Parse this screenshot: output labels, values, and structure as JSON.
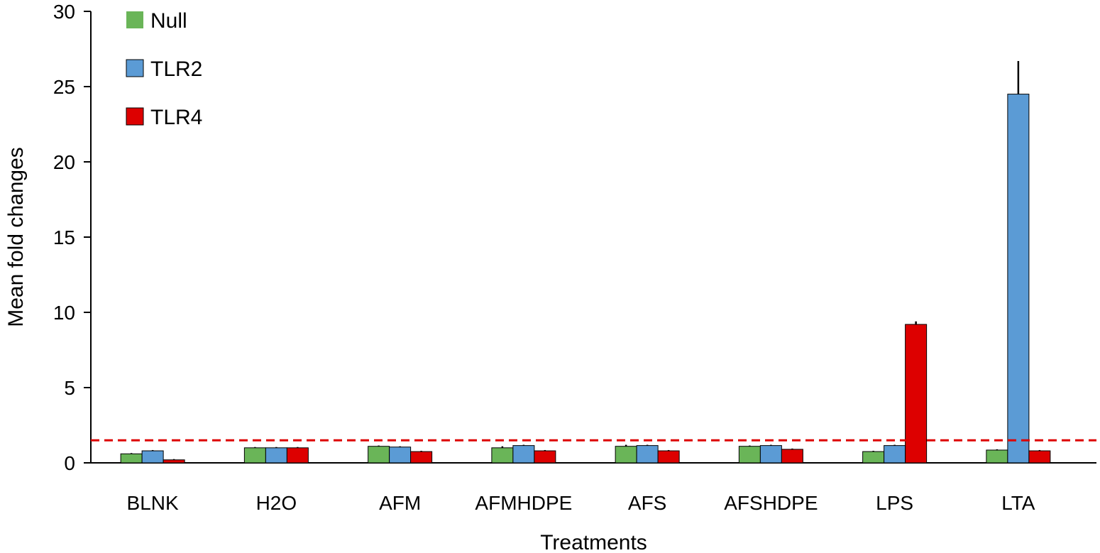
{
  "chart_data": {
    "type": "bar",
    "categories": [
      "BLNK",
      "H2O",
      "AFM",
      "AFMHDPE",
      "AFS",
      "AFSHDPE",
      "LPS",
      "LTA"
    ],
    "series": [
      {
        "name": "Null",
        "color": "#6ab558",
        "values": [
          0.6,
          1.0,
          1.1,
          1.0,
          1.1,
          1.1,
          0.75,
          0.85
        ],
        "errors": [
          0.05,
          0.05,
          0.05,
          0.1,
          0.1,
          0.05,
          0.05,
          0.05
        ]
      },
      {
        "name": "TLR2",
        "color": "#5b9bd5",
        "values": [
          0.8,
          1.0,
          1.05,
          1.15,
          1.15,
          1.15,
          1.15,
          24.5
        ],
        "errors": [
          0.05,
          0.05,
          0.05,
          0.05,
          0.05,
          0.05,
          0.05,
          2.2
        ]
      },
      {
        "name": "TLR4",
        "color": "#dd0000",
        "values": [
          0.2,
          1.0,
          0.75,
          0.8,
          0.8,
          0.9,
          9.2,
          0.8
        ],
        "errors": [
          0.05,
          0.05,
          0.05,
          0.05,
          0.05,
          0.05,
          0.2,
          0.05
        ]
      }
    ],
    "xlabel": "Treatments",
    "ylabel": "Mean fold changes",
    "ylim": [
      0,
      30
    ],
    "yticks": [
      "0",
      "5",
      "10",
      "15",
      "20",
      "25",
      "30"
    ],
    "reference_line": {
      "value": 1.5,
      "style": "dashed",
      "color": "#dd0000"
    },
    "legend_position": "top-left",
    "grid": false
  }
}
